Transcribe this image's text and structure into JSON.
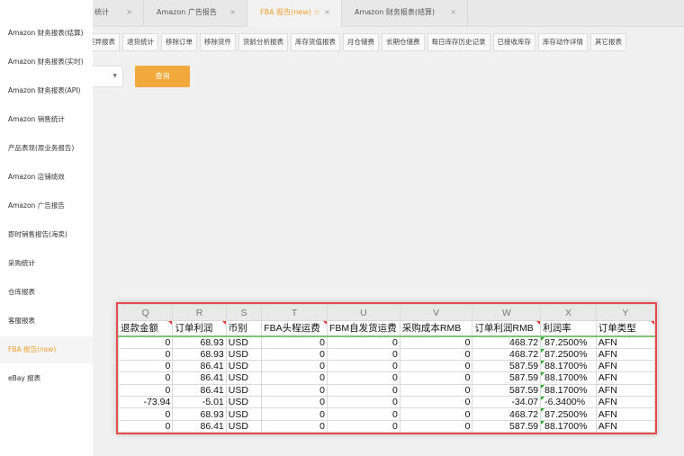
{
  "sidebar": {
    "items": [
      {
        "label": "Amazon 财务报表(结算)"
      },
      {
        "label": "Amazon 财务报表(实时)"
      },
      {
        "label": "Amazon 财务报表(API)"
      },
      {
        "label": "Amazon 销售统计"
      },
      {
        "label": "产品表现(原业务报告)"
      },
      {
        "label": "Amazon 店铺绩效"
      },
      {
        "label": "Amazon 广告报告"
      },
      {
        "label": "即时销售报告(海卖)"
      },
      {
        "label": "采购统计"
      },
      {
        "label": "仓库报表"
      },
      {
        "label": "客服报表"
      },
      {
        "label": "FBA 报告(new)"
      },
      {
        "label": "eBay 报表"
      }
    ],
    "active_index": 11
  },
  "tabs": [
    {
      "label": "统计"
    },
    {
      "label": "Amazon 广告报告"
    },
    {
      "label": "FBA 报告(new) ☆"
    },
    {
      "label": "Amazon 财务报表(结算)"
    }
  ],
  "close_glyph": "×",
  "subtabs": [
    "差异报表",
    "退货统计",
    "移除订单",
    "移除货件",
    "货龄分析报表",
    "库存货值报表",
    "月仓储费",
    "长期仓储费",
    "每日库存历史记录",
    "已接收库存",
    "库存动作详情",
    "其它报表"
  ],
  "query_label": "查询",
  "select_arrow": "▼",
  "accent": "#f0a93a",
  "sheet": {
    "columns": [
      "Q",
      "R",
      "S",
      "T",
      "U",
      "V",
      "W",
      "X",
      "Y"
    ],
    "headers": [
      "退款金额",
      "订单利润",
      "币别",
      "FBA头程运费",
      "FBM自发货运费",
      "采购成本RMB",
      "订单利润RMB",
      "利润率",
      "订单类型"
    ],
    "rows": [
      [
        "0",
        "68.93",
        "USD",
        "0",
        "0",
        "0",
        "468.72",
        "87.2500%",
        "AFN"
      ],
      [
        "0",
        "68.93",
        "USD",
        "0",
        "0",
        "0",
        "468.72",
        "87.2500%",
        "AFN"
      ],
      [
        "0",
        "86.41",
        "USD",
        "0",
        "0",
        "0",
        "587.59",
        "88.1700%",
        "AFN"
      ],
      [
        "0",
        "86.41",
        "USD",
        "0",
        "0",
        "0",
        "587.59",
        "88.1700%",
        "AFN"
      ],
      [
        "0",
        "86.41",
        "USD",
        "0",
        "0",
        "0",
        "587.59",
        "88.1700%",
        "AFN"
      ],
      [
        "-73.94",
        "-5.01",
        "USD",
        "0",
        "0",
        "0",
        "-34.07",
        "-6.3400%",
        "AFN"
      ],
      [
        "0",
        "68.93",
        "USD",
        "0",
        "0",
        "0",
        "468.72",
        "87.2500%",
        "AFN"
      ],
      [
        "0",
        "86.41",
        "USD",
        "0",
        "0",
        "0",
        "587.59",
        "88.1700%",
        "AFN"
      ]
    ]
  }
}
